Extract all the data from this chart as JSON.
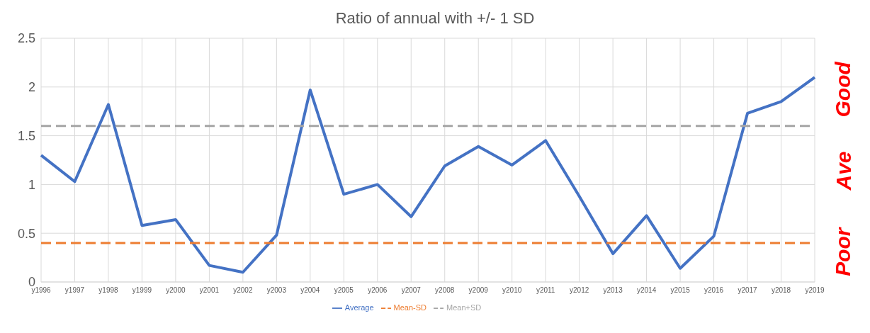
{
  "chart_data": {
    "type": "line",
    "title": "Ratio of annual with +/- 1 SD",
    "categories": [
      "y1996",
      "y1997",
      "y1998",
      "y1999",
      "y2000",
      "y2001",
      "y2002",
      "y2003",
      "y2004",
      "y2005",
      "y2006",
      "y2007",
      "y2008",
      "y2009",
      "y2010",
      "y2011",
      "y2012",
      "y2013",
      "y2014",
      "y2015",
      "y2016",
      "y2017",
      "y2018",
      "y2019"
    ],
    "series": [
      {
        "name": "Average",
        "color": "#4472c4",
        "line_style": "solid",
        "values": [
          1.3,
          1.03,
          1.82,
          0.58,
          0.64,
          0.17,
          0.1,
          0.48,
          1.97,
          0.9,
          1.0,
          0.67,
          1.19,
          1.39,
          1.2,
          1.45,
          0.88,
          0.29,
          0.68,
          0.14,
          0.47,
          1.73,
          1.85,
          2.1
        ]
      },
      {
        "name": "Mean-SD",
        "color": "#ed7d31",
        "line_style": "dashed",
        "values": [
          0.4,
          0.4,
          0.4,
          0.4,
          0.4,
          0.4,
          0.4,
          0.4,
          0.4,
          0.4,
          0.4,
          0.4,
          0.4,
          0.4,
          0.4,
          0.4,
          0.4,
          0.4,
          0.4,
          0.4,
          0.4,
          0.4,
          0.4,
          0.4
        ]
      },
      {
        "name": "Mean+SD",
        "color": "#a5a5a5",
        "line_style": "dashed",
        "values": [
          1.6,
          1.6,
          1.6,
          1.6,
          1.6,
          1.6,
          1.6,
          1.6,
          1.6,
          1.6,
          1.6,
          1.6,
          1.6,
          1.6,
          1.6,
          1.6,
          1.6,
          1.6,
          1.6,
          1.6,
          1.6,
          1.6,
          1.6,
          1.6
        ]
      }
    ],
    "ylim": [
      0,
      2.5
    ],
    "yticks": [
      0,
      0.5,
      1,
      1.5,
      2,
      2.5
    ],
    "grid": true,
    "legend": "bottom",
    "marker": "none",
    "annotations": [
      "Good",
      "Ave",
      "Poor"
    ]
  }
}
